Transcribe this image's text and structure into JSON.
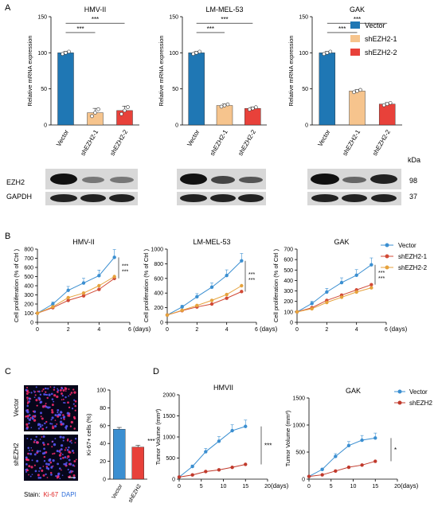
{
  "panels": {
    "A": "A",
    "B": "B",
    "C": "C",
    "D": "D"
  },
  "kda_label": "kDa",
  "blot_labels": [
    "EZH2",
    "GAPDH"
  ],
  "kda_values": [
    "98",
    "37"
  ],
  "panelA_legend": [
    {
      "name": "Vector",
      "color": "#1f77b4"
    },
    {
      "name": "shEZH2-1",
      "color": "#f6c48d"
    },
    {
      "name": "shEZH2-2",
      "color": "#e8413a"
    }
  ],
  "panelB_legend": [
    {
      "name": "Vector",
      "color": "#3b8fd1"
    },
    {
      "name": "shEZH2-1",
      "color": "#d14a36"
    },
    {
      "name": "shEZH2-2",
      "color": "#e6a23c"
    }
  ],
  "panelD_legend": [
    {
      "name": "Vector",
      "color": "#3b8fd1"
    },
    {
      "name": "shEZH2",
      "color": "#c0392b"
    }
  ],
  "sig": "***",
  "sig_single": "*",
  "days_label": "(days)",
  "stain_label": {
    "prefix": "Stain:",
    "ki67": "Ki-67",
    "dapi": "DAPI"
  },
  "micro_labels": [
    "Vector",
    "shEZH2"
  ],
  "chart_data": [
    {
      "panel": "A",
      "type": "bar",
      "title": "HMV-II",
      "categories": [
        "Vector",
        "shEZH2-1",
        "shEZH2-2"
      ],
      "values": [
        100,
        17,
        20
      ],
      "errors": [
        2,
        6,
        6
      ],
      "ylabel": "Relative mRNA expression",
      "ylim": [
        0,
        150
      ],
      "yticks": [
        0,
        50,
        100,
        150
      ]
    },
    {
      "panel": "A",
      "type": "bar",
      "title": "LM-MEL-53",
      "categories": [
        "Vector",
        "shEZH2-1",
        "shEZH2-2"
      ],
      "values": [
        100,
        27,
        23
      ],
      "errors": [
        2,
        2,
        2
      ],
      "ylabel": "Relative mRNA expression",
      "ylim": [
        0,
        150
      ],
      "yticks": [
        0,
        50,
        100,
        150
      ]
    },
    {
      "panel": "A",
      "type": "bar",
      "title": "GAK",
      "categories": [
        "Vector",
        "shEZH2-1",
        "shEZH2-2"
      ],
      "values": [
        100,
        47,
        29
      ],
      "errors": [
        2,
        2,
        2
      ],
      "ylabel": "Relative mRNA expression",
      "ylim": [
        0,
        150
      ],
      "yticks": [
        0,
        50,
        100,
        150
      ]
    },
    {
      "panel": "B",
      "type": "line",
      "title": "HMV-II",
      "x": [
        0,
        1,
        2,
        3,
        4,
        5
      ],
      "series": [
        {
          "name": "Vector",
          "values": [
            100,
            200,
            350,
            430,
            510,
            710
          ]
        },
        {
          "name": "shEZH2-1",
          "values": [
            100,
            160,
            240,
            290,
            360,
            480
          ]
        },
        {
          "name": "shEZH2-2",
          "values": [
            100,
            170,
            270,
            320,
            400,
            500
          ]
        }
      ],
      "ylabel": "Cell proliferation (% of Ctrl )",
      "ylim": [
        0,
        800
      ],
      "yticks": [
        0,
        100,
        200,
        300,
        400,
        500,
        600,
        700,
        800
      ],
      "xlim": [
        0,
        6
      ],
      "xticks": [
        0,
        2,
        4,
        6
      ]
    },
    {
      "panel": "B",
      "type": "line",
      "title": "LM-MEL-53",
      "x": [
        0,
        1,
        2,
        3,
        4,
        5
      ],
      "series": [
        {
          "name": "Vector",
          "values": [
            100,
            210,
            350,
            480,
            640,
            840
          ]
        },
        {
          "name": "shEZH2-1",
          "values": [
            100,
            160,
            210,
            250,
            330,
            420
          ]
        },
        {
          "name": "shEZH2-2",
          "values": [
            100,
            165,
            230,
            300,
            380,
            500
          ]
        }
      ],
      "ylabel": "Cell proliferation (% of Ctrl )",
      "ylim": [
        0,
        1000
      ],
      "yticks": [
        0,
        200,
        400,
        600,
        800,
        1000
      ],
      "xlim": [
        0,
        6
      ],
      "xticks": [
        0,
        2,
        4,
        6
      ]
    },
    {
      "panel": "B",
      "type": "line",
      "title": "GAK",
      "x": [
        0,
        1,
        2,
        3,
        4,
        5
      ],
      "series": [
        {
          "name": "Vector",
          "values": [
            100,
            180,
            290,
            380,
            450,
            550
          ]
        },
        {
          "name": "shEZH2-1",
          "values": [
            100,
            140,
            210,
            260,
            310,
            360
          ]
        },
        {
          "name": "shEZH2-2",
          "values": [
            100,
            130,
            190,
            240,
            290,
            330
          ]
        }
      ],
      "ylabel": "Cell proliferation (% of Ctrl )",
      "ylim": [
        0,
        700
      ],
      "yticks": [
        0,
        100,
        200,
        300,
        400,
        500,
        600,
        700
      ],
      "xlim": [
        0,
        6
      ],
      "xticks": [
        0,
        2,
        4,
        6
      ]
    },
    {
      "panel": "C",
      "type": "bar",
      "title": "",
      "categories": [
        "Vector",
        "shEZH2"
      ],
      "values": [
        56,
        36
      ],
      "errors": [
        2,
        2
      ],
      "ylabel": "Ki-67+ cells (%)",
      "ylim": [
        0,
        100
      ],
      "yticks": [
        0,
        20,
        40,
        60,
        80,
        100
      ]
    },
    {
      "panel": "D",
      "type": "line",
      "title": "HMVII",
      "x": [
        0,
        3,
        6,
        9,
        12,
        15
      ],
      "series": [
        {
          "name": "Vector",
          "values": [
            50,
            300,
            650,
            900,
            1150,
            1250
          ]
        },
        {
          "name": "shEZH2",
          "values": [
            50,
            100,
            180,
            220,
            280,
            350
          ]
        }
      ],
      "ylabel": "Tumor Volume (mm³)",
      "ylim": [
        0,
        2000
      ],
      "yticks": [
        0,
        500,
        1000,
        1500,
        2000
      ],
      "xlim": [
        0,
        20
      ],
      "xticks": [
        0,
        5,
        10,
        15,
        20
      ]
    },
    {
      "panel": "D",
      "type": "line",
      "title": "GAK",
      "x": [
        0,
        3,
        6,
        9,
        12,
        15
      ],
      "series": [
        {
          "name": "Vector",
          "values": [
            50,
            180,
            420,
            620,
            720,
            760
          ]
        },
        {
          "name": "shEZH2",
          "values": [
            50,
            80,
            150,
            220,
            260,
            330
          ]
        }
      ],
      "ylabel": "Tumor Volume (mm³)",
      "ylim": [
        0,
        1500
      ],
      "yticks": [
        0,
        500,
        1000,
        1500
      ],
      "xlim": [
        0,
        20
      ],
      "xticks": [
        0,
        5,
        10,
        15,
        20
      ]
    }
  ]
}
